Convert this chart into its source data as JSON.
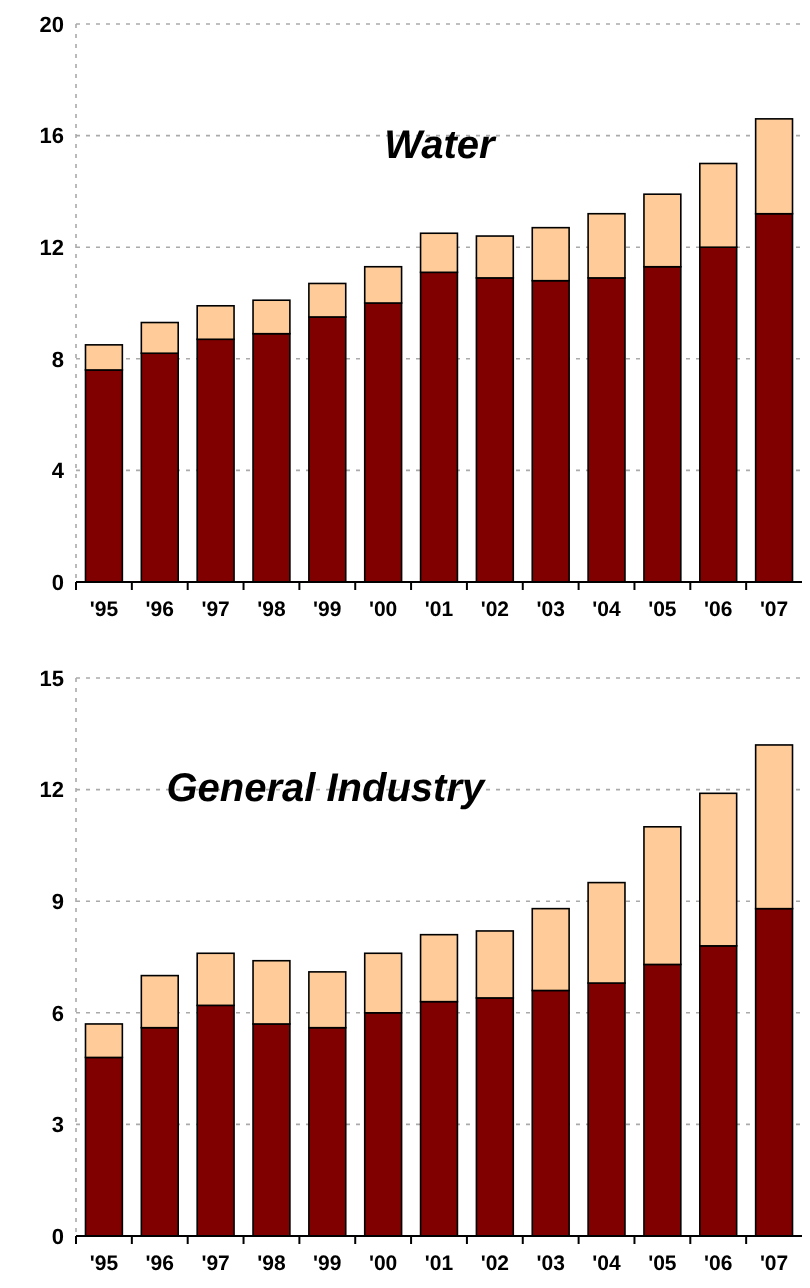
{
  "chart_data": [
    {
      "type": "bar",
      "title": "Water",
      "stacked": true,
      "grid": "y",
      "categories": [
        "'95",
        "'96",
        "'97",
        "'98",
        "'99",
        "'00",
        "'01",
        "'02",
        "'03",
        "'04",
        "'05",
        "'06",
        "'07"
      ],
      "series": [
        {
          "color": "#800000",
          "values": [
            7.6,
            8.2,
            8.7,
            8.9,
            9.5,
            10.0,
            11.1,
            10.9,
            10.8,
            10.9,
            11.3,
            12.0,
            13.2
          ]
        },
        {
          "color": "#ffcc99",
          "values": [
            0.9,
            1.1,
            1.2,
            1.2,
            1.2,
            1.3,
            1.4,
            1.5,
            1.9,
            2.3,
            2.6,
            3.0,
            3.4
          ]
        }
      ],
      "ylim": [
        0,
        20
      ],
      "yticks": [
        0,
        4,
        8,
        12,
        16,
        20
      ]
    },
    {
      "type": "bar",
      "title": "General Industry",
      "stacked": true,
      "grid": "y",
      "categories": [
        "'95",
        "'96",
        "'97",
        "'98",
        "'99",
        "'00",
        "'01",
        "'02",
        "'03",
        "'04",
        "'05",
        "'06",
        "'07"
      ],
      "series": [
        {
          "color": "#800000",
          "values": [
            4.8,
            5.6,
            6.2,
            5.7,
            5.6,
            6.0,
            6.3,
            6.4,
            6.6,
            6.8,
            7.3,
            7.8,
            8.8
          ]
        },
        {
          "color": "#ffcc99",
          "values": [
            0.9,
            1.4,
            1.4,
            1.7,
            1.5,
            1.6,
            1.8,
            1.8,
            2.2,
            2.7,
            3.7,
            4.1,
            4.4
          ]
        }
      ],
      "ylim": [
        0,
        15
      ],
      "yticks": [
        0,
        3,
        6,
        9,
        12,
        15
      ]
    }
  ]
}
